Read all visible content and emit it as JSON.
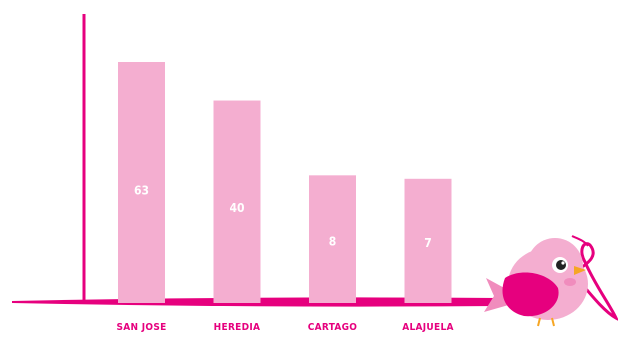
{
  "chart_data": {
    "type": "bar",
    "categories": [
      "SAN JOSE",
      "HEREDIA",
      "CARTAGO",
      "ALAJUELA"
    ],
    "values": [
      63,
      40,
      8,
      7
    ],
    "title": "",
    "xlabel": "",
    "ylabel": "",
    "grid": false,
    "legend": "none"
  },
  "colors": {
    "bar": "#f4aed0",
    "axis": "#e6007e",
    "value_label": "#ffffff",
    "category_label": "#e6007e",
    "bird_body": "#f4aed0",
    "bird_wing": "#e6007e"
  },
  "icons": [
    "bird-mascot-icon"
  ]
}
